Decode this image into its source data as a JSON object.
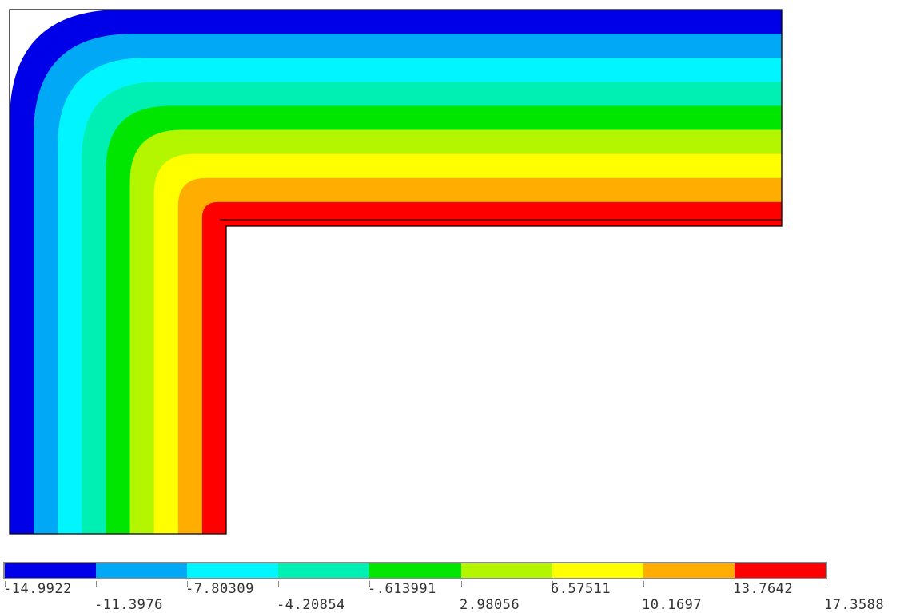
{
  "contour_plot": {
    "levels": [
      -14.9922,
      -11.3976,
      -7.80309,
      -4.20854,
      -0.613991,
      2.98056,
      6.57511,
      10.1697,
      13.7642,
      17.3588
    ],
    "band_colors": [
      "#0000e8",
      "#00a8f5",
      "#00f5ff",
      "#00f0b4",
      "#00e600",
      "#b4f500",
      "#ffff00",
      "#ffad00",
      "#ff0000"
    ]
  },
  "legend": {
    "labels": [
      "-14.9922",
      "-11.3976",
      "-7.80309",
      "-4.20854",
      "-.613991",
      "2.98056",
      "6.57511",
      "10.1697",
      "13.7642",
      "17.3588"
    ]
  }
}
